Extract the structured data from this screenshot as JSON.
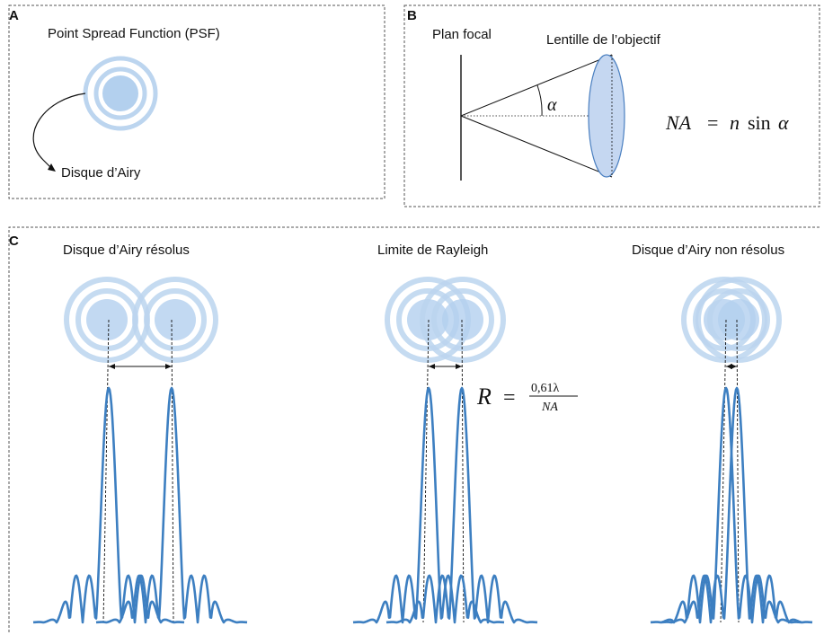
{
  "panel_a": {
    "letter": "A",
    "title": "Point Spread Function (PSF)",
    "arrow_label": "Disque d’Airy"
  },
  "panel_b": {
    "letter": "B",
    "focal_plane": "Plan focal",
    "lens": "Lentille de l’objectif",
    "angle_symbol": "α",
    "formula": {
      "lhs": "NA",
      "eq": "=",
      "n": "n",
      "sin": "sin",
      "alpha": "α"
    }
  },
  "panel_c": {
    "letter": "C",
    "cases": [
      {
        "title": "Disque d’Airy résolus"
      },
      {
        "title": "Limite de Rayleigh"
      },
      {
        "title": "Disque d’Airy non résolus"
      }
    ],
    "rayleigh_formula": {
      "lhs": "R",
      "eq": "=",
      "numerator": "0,61λ",
      "denominator": "NA"
    }
  },
  "colors": {
    "ring": "#bcd5ef",
    "core": "#b3d0ee",
    "curve": "#3d7fc1",
    "lens_fill": "#c5d7f1",
    "lens_stroke": "#4a7fc0",
    "frame": "#555555"
  }
}
